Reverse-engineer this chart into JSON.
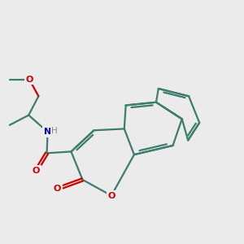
{
  "bg_color": "#ebebeb",
  "bond_color": "#3d7d6e",
  "O_color": "#cc0000",
  "N_color": "#0000cc",
  "H_color": "#888888",
  "line_width": 1.6,
  "figsize": [
    3.0,
    3.0
  ],
  "dpi": 100,
  "BL": 0.72,
  "xlim": [
    0.5,
    8.5
  ],
  "ylim": [
    0.8,
    8.0
  ]
}
